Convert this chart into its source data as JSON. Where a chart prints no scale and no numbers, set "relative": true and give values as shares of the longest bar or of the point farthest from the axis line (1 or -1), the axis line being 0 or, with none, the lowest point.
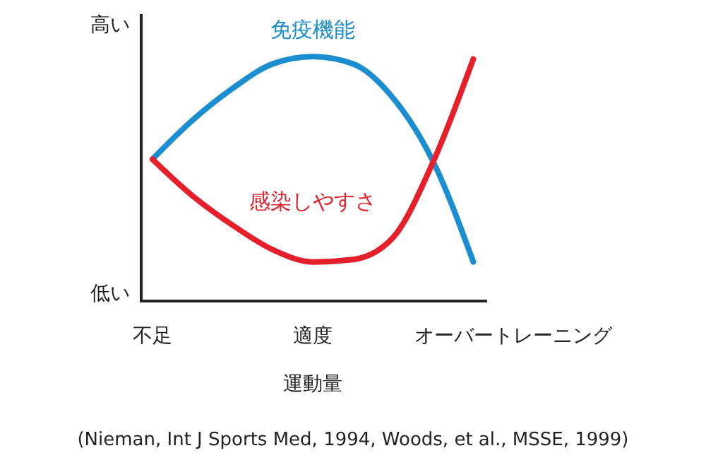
{
  "chart_data": {
    "type": "line",
    "relative": true,
    "xlabel": "運動量",
    "categories": [
      "不足",
      null,
      null,
      null,
      "適度",
      null,
      null,
      null,
      null,
      "オーバートレーニング"
    ],
    "series": [
      {
        "name": "免疫機能",
        "color": "#1a8ed0",
        "values": [
          0.58,
          0.74,
          0.87,
          0.97,
          1,
          0.97,
          0.83,
          0.57,
          0.16,
          null
        ]
      },
      {
        "name": "感染しやすさ",
        "color": "#e5202b",
        "values": [
          0.58,
          0.43,
          0.31,
          0.21,
          0.16,
          0.17,
          0.26,
          0.57,
          0.99,
          null
        ]
      }
    ],
    "annotations": [
      "高い",
      "低い",
      "(Nieman, Int J Sports Med, 1994, Woods, et al., MSSE, 1999)"
    ],
    "line_style": "solid"
  }
}
